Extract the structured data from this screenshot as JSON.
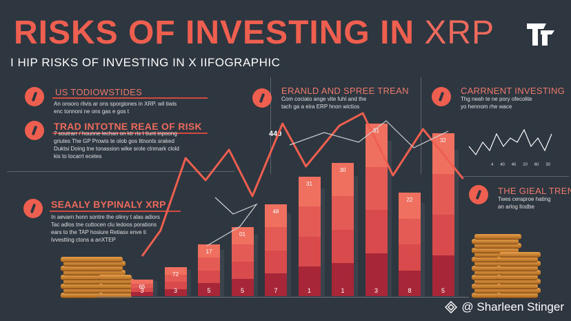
{
  "title": {
    "main": "RISKS OF INVESTING IN ",
    "suffix": "XRP"
  },
  "subtitle": "I HIP RISKS OF INVESTING IN X IIFOGRAPHIC",
  "sections": {
    "us_top": {
      "heading": "US TODIOWSTIDES",
      "text": "An onsoro rlivis ar ons sporgiones in XRP. wil tiwis\nenc tonnoni ne ons gas e gos t"
    },
    "trading": {
      "heading": "TRAD INTOTNE REAE OF RISK",
      "text": "7 soutrarr / hounne lechan on ktr ris t tiunt inpoong\ngriutes The GP Prowis te olob gos litnonts sraked\nDuktsi Doing tne tonassion wike srole clnmark clold\nkis to tocarrt ecetes"
    },
    "early": {
      "heading": "SEAALY BYPINALY XRP",
      "text": "In aevarn honn sontre the olinry t alas adiors\nTac adlos tne cuttocen clu ledoos porations\nears to the TAP hosiure Retiasx enve ti\nIvvestting ctons a anXTEP"
    },
    "trend": {
      "heading": "ERANLD AND SPREE TREAN",
      "text": "Com cociato ange vite fuhl and the\ntach ga a eira ERP hnon wictios"
    },
    "current": {
      "heading": "CARRNENT INVESTING",
      "text": "Thg neah te ne pory ofecolite\nyo hennom rhe wace"
    },
    "digital": {
      "heading": "THE GIEAL TREND",
      "text": "Twes ceraproe hating\nan arlog ltodbe"
    }
  },
  "chart_data": {
    "type": "bar",
    "categories": [
      "3",
      "3",
      "5",
      "5",
      "7",
      "1",
      "1",
      "3",
      "8",
      "5"
    ],
    "bar_top_labels": [
      "65",
      "72",
      "17",
      "01",
      "48",
      "31",
      "30",
      "31",
      "22",
      "32"
    ],
    "values": [
      24,
      42,
      75,
      100,
      133,
      173,
      193,
      250,
      150,
      236
    ],
    "line_values": [
      [
        0,
        58
      ],
      [
        0.55,
        95
      ],
      [
        1.3,
        200
      ],
      [
        1.9,
        168
      ],
      [
        2.6,
        212
      ],
      [
        3.3,
        145
      ],
      [
        4.2,
        250
      ],
      [
        4.9,
        188
      ],
      [
        5.9,
        247
      ],
      [
        6.6,
        265
      ],
      [
        7.5,
        175
      ],
      [
        8.4,
        242
      ],
      [
        9.6,
        170
      ]
    ],
    "annotation": "440",
    "ylim": [
      0,
      280
    ]
  },
  "mini_chart": {
    "ticks": [
      "4",
      "40",
      "40",
      "20",
      "60",
      "30"
    ],
    "values": [
      3,
      1,
      4,
      2,
      6,
      3,
      5,
      4,
      7,
      3,
      5,
      2,
      6
    ]
  },
  "watermark": "@ Sharleen Stinger",
  "colors": {
    "background": "#2e3640",
    "accent": "#ee5f50",
    "bar_light": "#f07060",
    "bar_mid": "#d94a4c",
    "bar_dark": "#a72638"
  },
  "icons": [
    "pen-icon",
    "pen-icon",
    "pen-icon",
    "pen-icon",
    "pen-icon",
    "pen-icon",
    "coin-stack-icon",
    "logo-icon",
    "diamond-icon"
  ]
}
